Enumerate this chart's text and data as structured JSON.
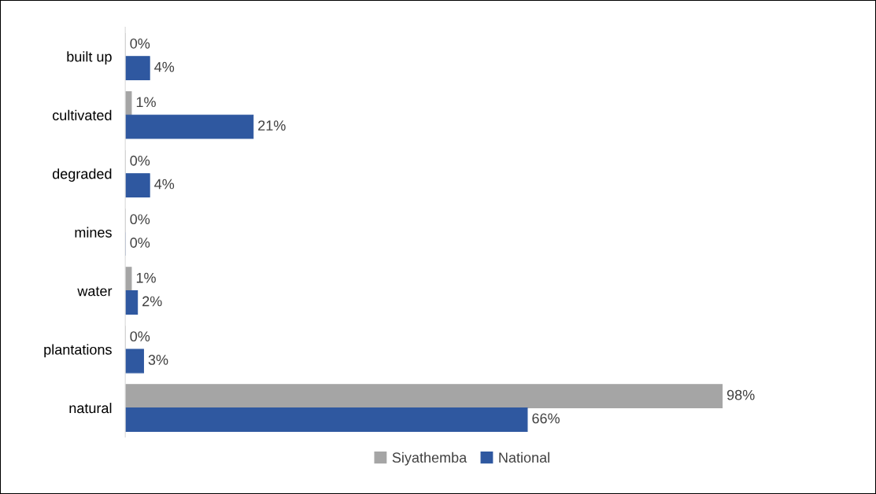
{
  "chart_data": {
    "type": "bar",
    "orientation": "horizontal",
    "categories": [
      "built up",
      "cultivated",
      "degraded",
      "mines",
      "water",
      "plantations",
      "natural"
    ],
    "series": [
      {
        "name": "Siyathemba",
        "color": "#a5a5a5",
        "values": [
          0,
          1,
          0,
          0,
          1,
          0,
          98
        ],
        "value_labels": [
          "0%",
          "1%",
          "0%",
          "0%",
          "1%",
          "0%",
          "98%"
        ]
      },
      {
        "name": "National",
        "color": "#2f58a0",
        "values": [
          4,
          21,
          4,
          0,
          2,
          3,
          66
        ],
        "value_labels": [
          "4%",
          "21%",
          "4%",
          "0%",
          "2%",
          "3%",
          "66%"
        ]
      }
    ],
    "legend": "bottom",
    "grid": false
  }
}
